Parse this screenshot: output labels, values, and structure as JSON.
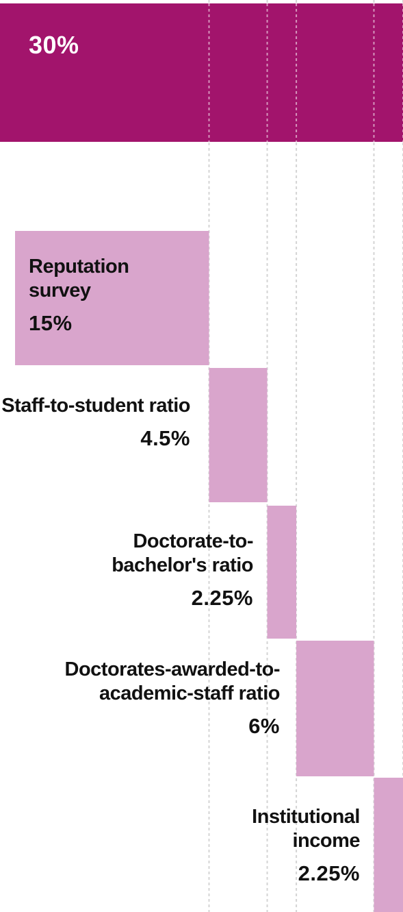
{
  "chart_data": {
    "type": "bar",
    "orientation": "waterfall-stacked-horizontal",
    "title": "",
    "total": 60,
    "segments": [
      {
        "label": "",
        "value": 30,
        "value_label": "30%"
      },
      {
        "label": "Reputation survey",
        "value": 15,
        "value_label": "15%"
      },
      {
        "label": "Staff-to-student ratio",
        "value": 4.5,
        "value_label": "4.5%"
      },
      {
        "label": "Doctorate-to-bachelor's ratio",
        "value": 2.25,
        "value_label": "2.25%"
      },
      {
        "label": "Doctorates-awarded-to-academic-staff ratio",
        "value": 6,
        "value_label": "6%"
      },
      {
        "label": "Institutional income",
        "value": 2.25,
        "value_label": "2.25%"
      }
    ],
    "colors": {
      "top_bar": "#a2146c",
      "step_bar": "#d9a5cc",
      "gridline": "#d4d4d4"
    },
    "grid": true
  }
}
